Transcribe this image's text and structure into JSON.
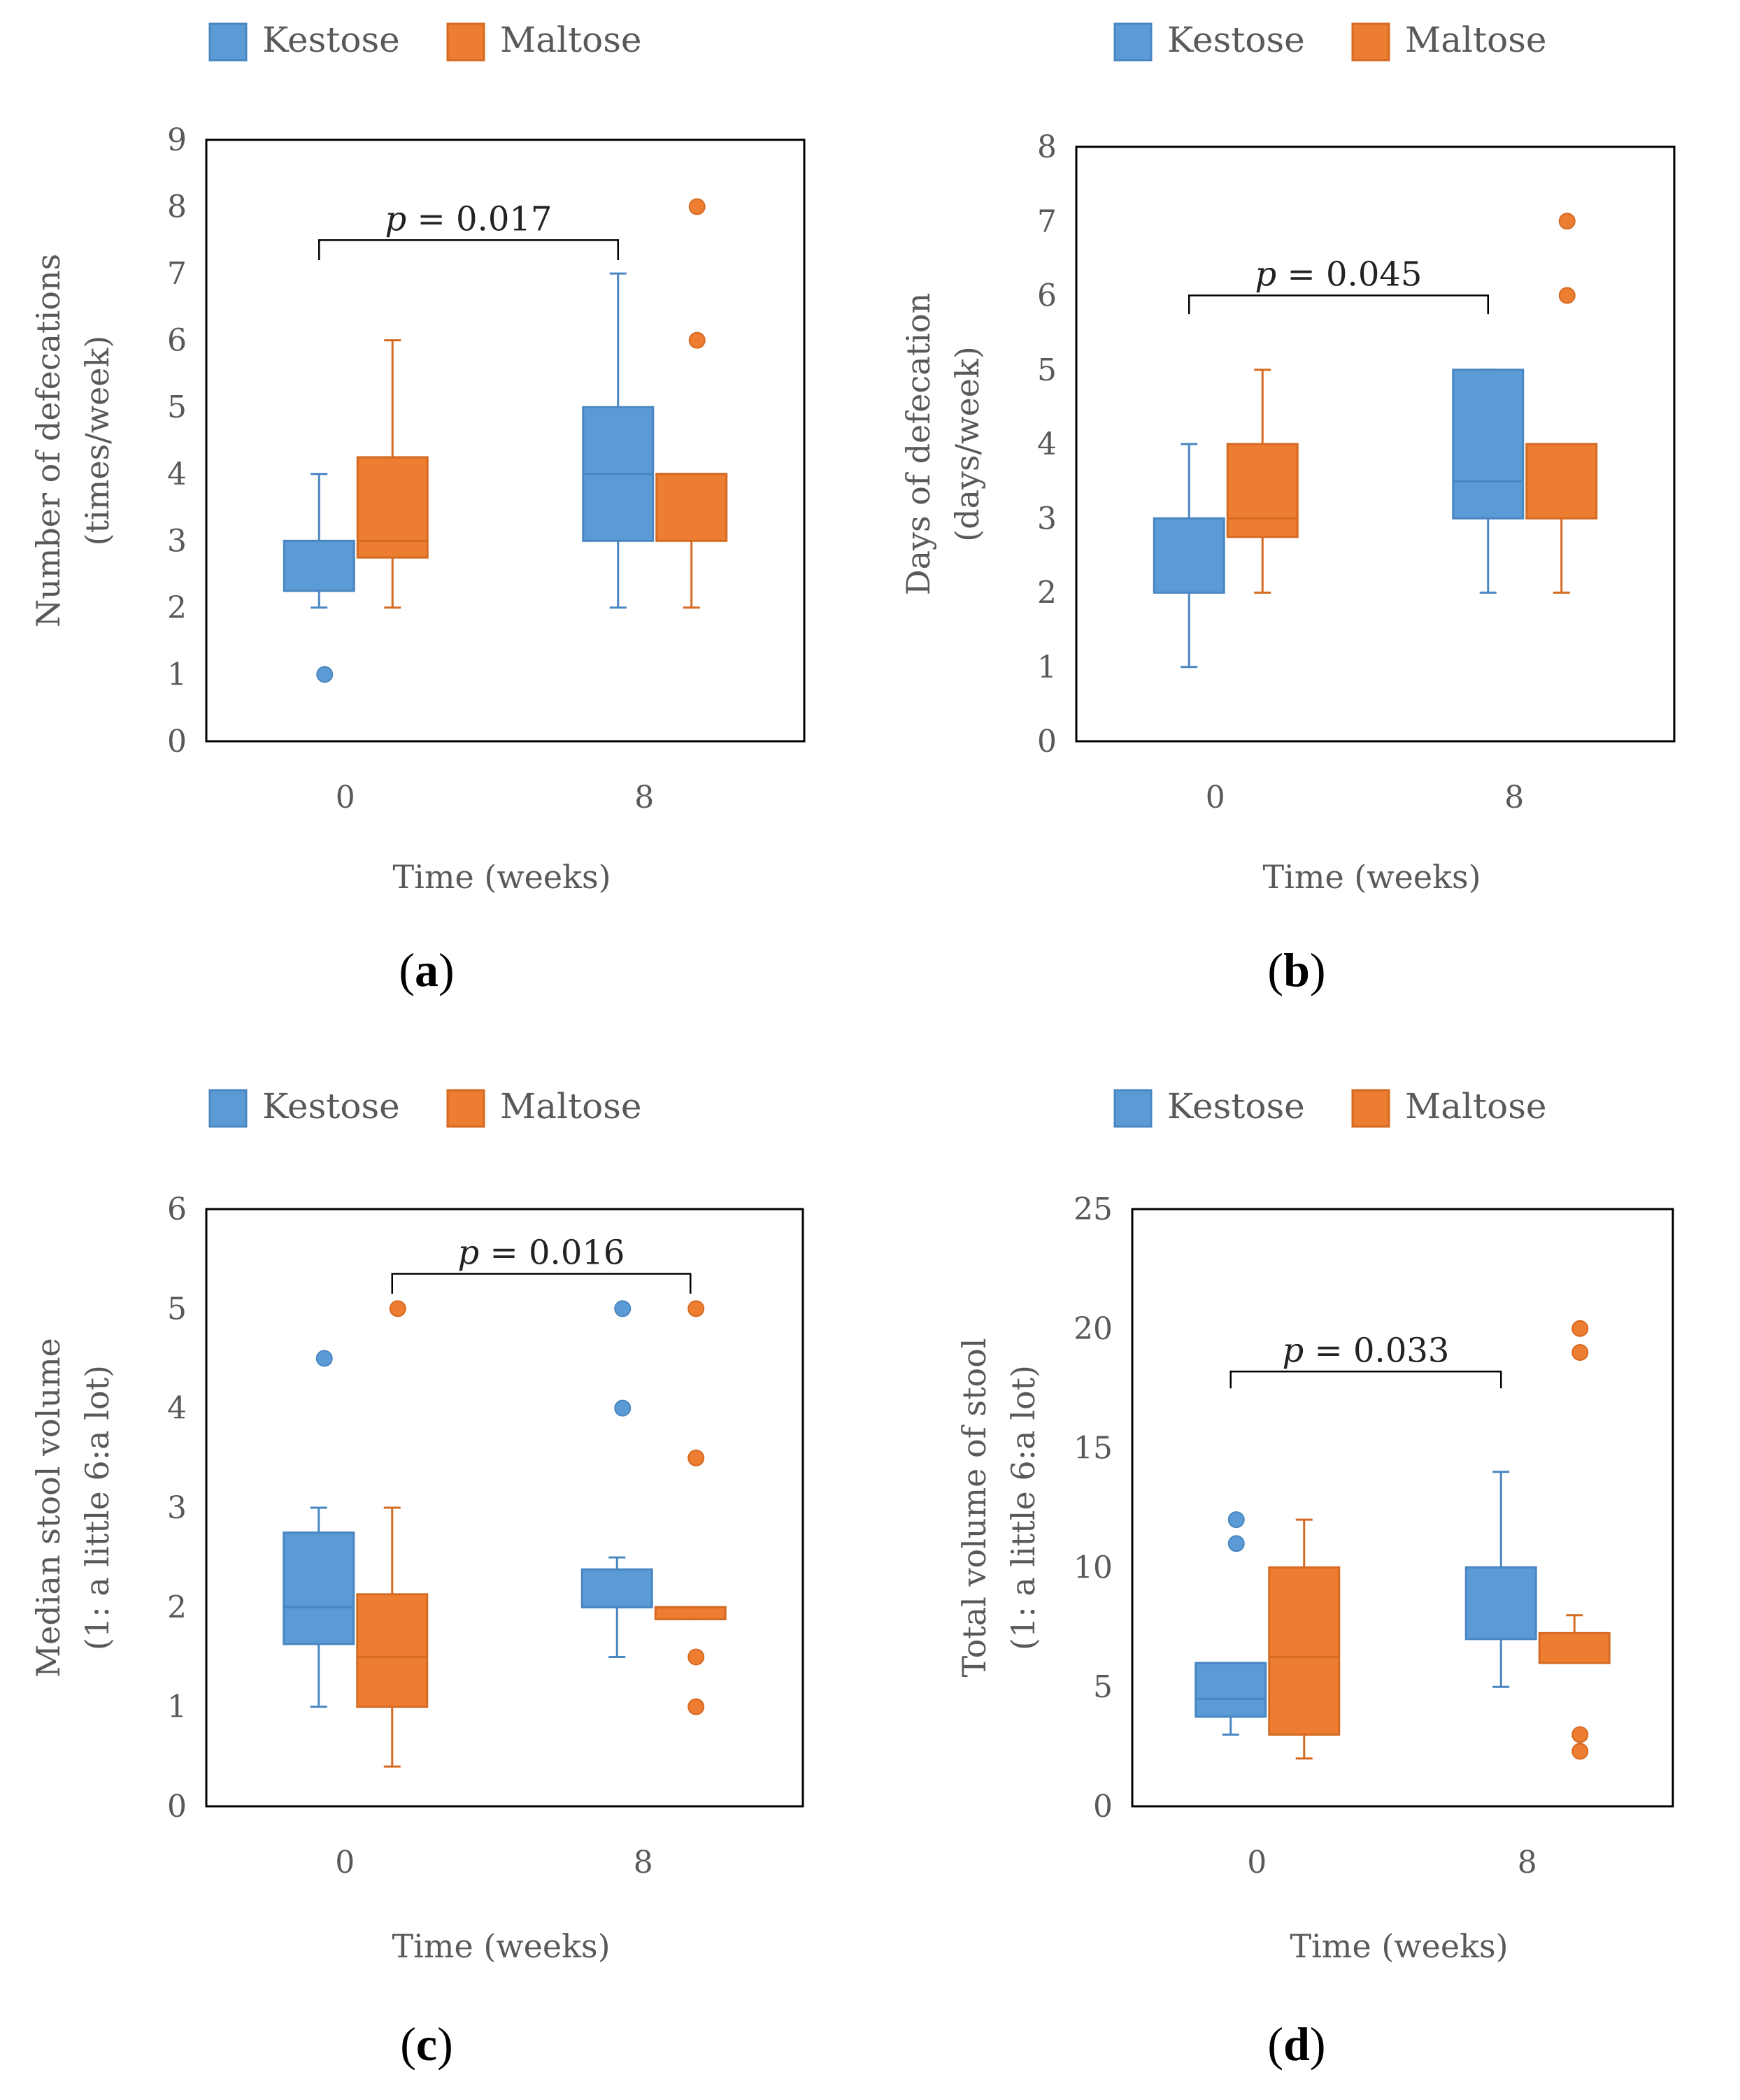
{
  "colors": {
    "kestose": "#5B9BD5",
    "maltose": "#ED7D31",
    "kestose_edge": "#4A86C1",
    "maltose_edge": "#D56A22"
  },
  "chart_data": [
    {
      "type": "box",
      "panel_label": "a",
      "legend": [
        "Kestose",
        "Maltose"
      ],
      "ylabel_line1": "Number of defecations",
      "ylabel_line2": "(times/week)",
      "xlabel": "Time (weeks)",
      "ylim": [
        0,
        9
      ],
      "yticks": [
        "0",
        "1",
        "2",
        "3",
        "4",
        "5",
        "6",
        "7",
        "8",
        "9"
      ],
      "categories": [
        "0",
        "8"
      ],
      "pvalue": {
        "label": "p",
        "text": " = 0.017",
        "from": {
          "cat": 0,
          "series": 0
        },
        "to": {
          "cat": 1,
          "series": 0
        },
        "y": 7.5,
        "drop": 0.3
      },
      "series": [
        {
          "name": "Kestose",
          "boxes": [
            {
              "whisker_low": 2,
              "q1": 2.25,
              "median": 2.25,
              "q3": 3,
              "whisker_high": 4,
              "outliers": [
                1
              ]
            },
            {
              "whisker_low": 2,
              "q1": 3,
              "median": 4,
              "q3": 5,
              "whisker_high": 7,
              "outliers": []
            }
          ]
        },
        {
          "name": "Maltose",
          "boxes": [
            {
              "whisker_low": 2,
              "q1": 2.75,
              "median": 3,
              "q3": 4.25,
              "whisker_high": 6,
              "outliers": []
            },
            {
              "whisker_low": 2,
              "q1": 3,
              "median": 4,
              "q3": 4,
              "whisker_high": 4,
              "outliers": [
                8,
                6
              ]
            }
          ]
        }
      ]
    },
    {
      "type": "box",
      "panel_label": "b",
      "legend": [
        "Kestose",
        "Maltose"
      ],
      "ylabel_line1": "Days of defecation",
      "ylabel_line2": "(days/week)",
      "xlabel": "Time (weeks)",
      "ylim": [
        0,
        8
      ],
      "yticks": [
        "0",
        "1",
        "2",
        "3",
        "4",
        "5",
        "6",
        "7",
        "8"
      ],
      "categories": [
        "0",
        "8"
      ],
      "pvalue": {
        "label": "p",
        "text": " = 0.045",
        "from": {
          "cat": 0,
          "series": 0
        },
        "to": {
          "cat": 1,
          "series": 0
        },
        "y": 6.0,
        "drop": 0.25
      },
      "series": [
        {
          "name": "Kestose",
          "boxes": [
            {
              "whisker_low": 1,
              "q1": 2,
              "median": 2,
              "q3": 3,
              "whisker_high": 4,
              "outliers": []
            },
            {
              "whisker_low": 2,
              "q1": 3,
              "median": 3.5,
              "q3": 5,
              "whisker_high": 5,
              "outliers": []
            }
          ]
        },
        {
          "name": "Maltose",
          "boxes": [
            {
              "whisker_low": 2,
              "q1": 2.75,
              "median": 3,
              "q3": 4,
              "whisker_high": 5,
              "outliers": []
            },
            {
              "whisker_low": 2,
              "q1": 3,
              "median": 4,
              "q3": 4,
              "whisker_high": 4,
              "outliers": [
                7,
                6
              ]
            }
          ]
        }
      ]
    },
    {
      "type": "box",
      "panel_label": "c",
      "legend": [
        "Kestose",
        "Maltose"
      ],
      "ylabel_line1": "Median stool volume",
      "ylabel_line2": "(1: a little 6:a lot)",
      "xlabel": "Time (weeks)",
      "ylim": [
        0,
        6
      ],
      "yticks": [
        "0",
        "1",
        "2",
        "3",
        "4",
        "5",
        "6"
      ],
      "categories": [
        "0",
        "8"
      ],
      "pvalue": {
        "label": "p",
        "text": " = 0.016",
        "from": {
          "cat": 0,
          "series": 1
        },
        "to": {
          "cat": 1,
          "series": 1
        },
        "y": 5.35,
        "drop": 0.2
      },
      "series": [
        {
          "name": "Kestose",
          "boxes": [
            {
              "whisker_low": 1,
              "q1": 1.63,
              "median": 2,
              "q3": 2.75,
              "whisker_high": 3,
              "outliers": [
                4.5
              ]
            },
            {
              "whisker_low": 1.5,
              "q1": 2,
              "median": 2,
              "q3": 2.38,
              "whisker_high": 2.5,
              "outliers": [
                5,
                4
              ]
            }
          ]
        },
        {
          "name": "Maltose",
          "boxes": [
            {
              "whisker_low": 0.4,
              "q1": 1,
              "median": 1.5,
              "q3": 2.13,
              "whisker_high": 3,
              "outliers": [
                5
              ]
            },
            {
              "whisker_low": 1.88,
              "q1": 1.88,
              "median": 2,
              "q3": 2,
              "whisker_high": 2,
              "outliers": [
                5,
                3.5,
                1.5,
                1
              ]
            }
          ]
        }
      ]
    },
    {
      "type": "box",
      "panel_label": "d",
      "legend": [
        "Kestose",
        "Maltose"
      ],
      "ylabel_line1": "Total volume of stool",
      "ylabel_line2": "(1: a little 6:a lot)",
      "xlabel": "Time (weeks)",
      "ylim": [
        0,
        25
      ],
      "yticks": [
        "0",
        "5",
        "10",
        "15",
        "20",
        "25"
      ],
      "categories": [
        "0",
        "8"
      ],
      "pvalue": {
        "label": "p",
        "text": " = 0.033",
        "from": {
          "cat": 0,
          "series": 0
        },
        "to": {
          "cat": 1,
          "series": 0
        },
        "y": 18.2,
        "drop": 0.7
      },
      "series": [
        {
          "name": "Kestose",
          "boxes": [
            {
              "whisker_low": 3,
              "q1": 3.75,
              "median": 4.5,
              "q3": 6,
              "whisker_high": 6,
              "outliers": [
                12,
                11
              ]
            },
            {
              "whisker_low": 5,
              "q1": 7,
              "median": 10,
              "q3": 10,
              "whisker_high": 14,
              "outliers": []
            }
          ]
        },
        {
          "name": "Maltose",
          "boxes": [
            {
              "whisker_low": 2,
              "q1": 3,
              "median": 6.25,
              "q3": 10,
              "whisker_high": 12,
              "outliers": []
            },
            {
              "whisker_low": 6,
              "q1": 6,
              "median": 6,
              "q3": 7.25,
              "whisker_high": 8,
              "outliers": [
                20,
                19,
                3,
                2.3
              ]
            }
          ]
        }
      ]
    }
  ]
}
